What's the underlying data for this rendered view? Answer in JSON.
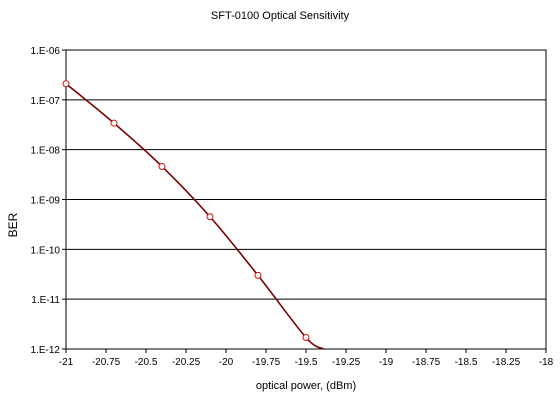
{
  "chart_data": {
    "type": "line",
    "title": "SFT-0100 Optical Sensitivity",
    "xlabel": "optical power, (dBm)",
    "ylabel": "BER",
    "x_ticks": [
      "-21",
      "-20.75",
      "-20.5",
      "-20.25",
      "-20",
      "-19.75",
      "-19.5",
      "-19.25",
      "-19",
      "-18.75",
      "-18.5",
      "-18.25",
      "-18"
    ],
    "y_ticks": [
      "1.E-06",
      "1.E-07",
      "1.E-08",
      "1.E-09",
      "1.E-10",
      "1.E-11",
      "1.E-12"
    ],
    "xlim": [
      -21,
      -18
    ],
    "ylim": [
      1e-12,
      1e-06
    ],
    "y_scale": "log",
    "grid": "horizontal",
    "legend": "none",
    "series": [
      {
        "points": [
          {
            "x": -21.0,
            "y": 2.1e-07
          },
          {
            "x": -20.7,
            "y": 3.4e-08
          },
          {
            "x": -20.4,
            "y": 4.6e-09
          },
          {
            "x": -20.1,
            "y": 4.5e-10
          },
          {
            "x": -19.8,
            "y": 3e-11
          },
          {
            "x": -19.5,
            "y": 1.7e-12
          }
        ],
        "trend_end": {
          "x": -19.39,
          "y": 1e-12
        }
      }
    ],
    "colors": {
      "line": "#7a0000",
      "marker_stroke": "#d01010",
      "marker_fill": "#ffffff",
      "grid": "#000000",
      "axis": "#000000"
    }
  }
}
